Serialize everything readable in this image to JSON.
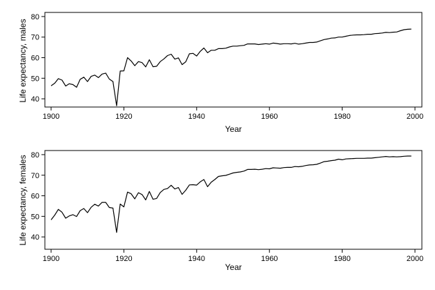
{
  "chart_data": [
    {
      "type": "line",
      "xlabel": "Year",
      "ylabel": "Life expectancy, males",
      "xlim": [
        1900,
        2000
      ],
      "ylim": [
        36,
        82
      ],
      "xticks": [
        1900,
        1920,
        1940,
        1960,
        1980,
        2000
      ],
      "yticks": [
        40,
        50,
        60,
        70,
        80
      ],
      "grid": false,
      "series": [
        {
          "x": [
            1900,
            1901,
            1902,
            1903,
            1904,
            1905,
            1906,
            1907,
            1908,
            1909,
            1910,
            1911,
            1912,
            1913,
            1914,
            1915,
            1916,
            1917,
            1918,
            1919,
            1920,
            1921,
            1922,
            1923,
            1924,
            1925,
            1926,
            1927,
            1928,
            1929,
            1930,
            1931,
            1932,
            1933,
            1934,
            1935,
            1936,
            1937,
            1938,
            1939,
            1940,
            1941,
            1942,
            1943,
            1944,
            1945,
            1946,
            1947,
            1948,
            1949,
            1950,
            1951,
            1952,
            1953,
            1954,
            1955,
            1956,
            1957,
            1958,
            1959,
            1960,
            1961,
            1962,
            1963,
            1964,
            1965,
            1966,
            1967,
            1968,
            1969,
            1970,
            1971,
            1972,
            1973,
            1974,
            1975,
            1976,
            1977,
            1978,
            1979,
            1980,
            1981,
            1982,
            1983,
            1984,
            1985,
            1986,
            1987,
            1988,
            1989,
            1990,
            1991,
            1992,
            1993,
            1994,
            1995,
            1996,
            1997,
            1998,
            1999
          ],
          "values": [
            46.3,
            47.6,
            49.8,
            49.1,
            46.2,
            47.3,
            46.9,
            45.6,
            49.5,
            50.5,
            48.4,
            50.9,
            51.5,
            50.3,
            52.0,
            52.5,
            49.6,
            48.4,
            36.6,
            53.5,
            53.6,
            60.0,
            58.4,
            56.1,
            58.1,
            57.6,
            55.5,
            59.0,
            55.6,
            55.8,
            58.1,
            59.4,
            61.0,
            61.7,
            59.3,
            59.9,
            56.6,
            58.0,
            61.9,
            62.1,
            60.8,
            63.1,
            64.7,
            62.4,
            63.6,
            63.6,
            64.4,
            64.4,
            64.6,
            65.2,
            65.6,
            65.6,
            65.8,
            66.0,
            66.7,
            66.7,
            66.7,
            66.4,
            66.6,
            66.8,
            66.6,
            67.1,
            66.9,
            66.6,
            66.8,
            66.8,
            66.7,
            67.0,
            66.6,
            66.8,
            67.1,
            67.4,
            67.4,
            67.6,
            68.2,
            68.8,
            69.1,
            69.5,
            69.6,
            70.0,
            70.0,
            70.4,
            70.8,
            71.0,
            71.1,
            71.1,
            71.2,
            71.4,
            71.4,
            71.7,
            71.8,
            72.0,
            72.3,
            72.2,
            72.4,
            72.5,
            73.1,
            73.6,
            73.8,
            73.9
          ]
        }
      ]
    },
    {
      "type": "line",
      "xlabel": "Year",
      "ylabel": "Life expectancy, females",
      "xlim": [
        1900,
        2000
      ],
      "ylim": [
        34,
        82
      ],
      "xticks": [
        1900,
        1920,
        1940,
        1960,
        1980,
        2000
      ],
      "yticks": [
        40,
        50,
        60,
        70,
        80
      ],
      "grid": false,
      "series": [
        {
          "x": [
            1900,
            1901,
            1902,
            1903,
            1904,
            1905,
            1906,
            1907,
            1908,
            1909,
            1910,
            1911,
            1912,
            1913,
            1914,
            1915,
            1916,
            1917,
            1918,
            1919,
            1920,
            1921,
            1922,
            1923,
            1924,
            1925,
            1926,
            1927,
            1928,
            1929,
            1930,
            1931,
            1932,
            1933,
            1934,
            1935,
            1936,
            1937,
            1938,
            1939,
            1940,
            1941,
            1942,
            1943,
            1944,
            1945,
            1946,
            1947,
            1948,
            1949,
            1950,
            1951,
            1952,
            1953,
            1954,
            1955,
            1956,
            1957,
            1958,
            1959,
            1960,
            1961,
            1962,
            1963,
            1964,
            1965,
            1966,
            1967,
            1968,
            1969,
            1970,
            1971,
            1972,
            1973,
            1974,
            1975,
            1976,
            1977,
            1978,
            1979,
            1980,
            1981,
            1982,
            1983,
            1984,
            1985,
            1986,
            1987,
            1988,
            1989,
            1990,
            1991,
            1992,
            1993,
            1994,
            1995,
            1996,
            1997,
            1998,
            1999
          ],
          "values": [
            48.3,
            50.6,
            53.4,
            52.0,
            49.1,
            50.2,
            50.8,
            49.9,
            52.8,
            53.8,
            51.8,
            54.4,
            55.9,
            55.0,
            56.8,
            56.8,
            54.3,
            54.0,
            42.2,
            56.0,
            54.6,
            61.8,
            61.0,
            58.5,
            61.5,
            60.6,
            58.0,
            62.1,
            58.3,
            58.7,
            61.6,
            63.1,
            63.5,
            65.1,
            63.3,
            64.0,
            60.7,
            62.7,
            65.3,
            65.4,
            65.2,
            66.8,
            67.9,
            64.4,
            66.6,
            67.9,
            69.4,
            69.7,
            69.9,
            70.5,
            71.1,
            71.4,
            71.6,
            72.0,
            72.8,
            72.8,
            72.9,
            72.7,
            72.9,
            73.2,
            73.1,
            73.6,
            73.5,
            73.4,
            73.7,
            73.8,
            73.8,
            74.2,
            74.1,
            74.3,
            74.7,
            75.0,
            75.1,
            75.3,
            75.9,
            76.6,
            76.8,
            77.1,
            77.3,
            77.8,
            77.5,
            77.9,
            78.0,
            78.1,
            78.2,
            78.2,
            78.2,
            78.3,
            78.3,
            78.5,
            78.7,
            78.9,
            79.1,
            78.9,
            79.0,
            78.9,
            79.0,
            79.2,
            79.3,
            79.3
          ]
        }
      ]
    }
  ]
}
